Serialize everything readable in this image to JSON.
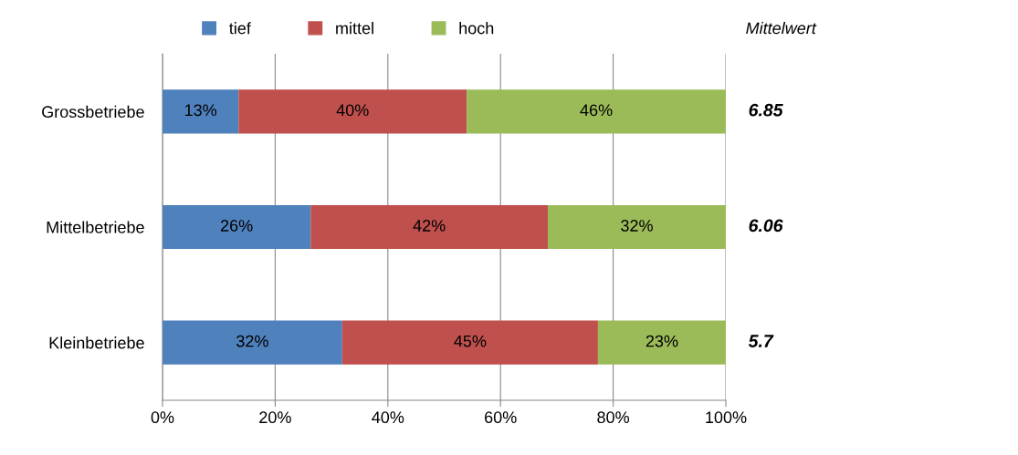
{
  "chart_data": {
    "type": "bar",
    "orientation": "horizontal",
    "stacked": true,
    "categories": [
      "Grossbetriebe",
      "Mittelbetriebe",
      "Kleinbetriebe"
    ],
    "series": [
      {
        "name": "tief",
        "color": "#4f81bd",
        "values": [
          13.5,
          26.3,
          31.9
        ],
        "value_labels": [
          "13%",
          "26%",
          "32%"
        ]
      },
      {
        "name": "mittel",
        "color": "#c0504d",
        "values": [
          40.5,
          42.1,
          45.4
        ],
        "value_labels": [
          "40%",
          "42%",
          "45%"
        ]
      },
      {
        "name": "hoch",
        "color": "#9bbb59",
        "values": [
          46.0,
          31.6,
          22.7
        ],
        "value_labels": [
          "46%",
          "32%",
          "23%"
        ]
      }
    ],
    "xlim": [
      0,
      100
    ],
    "xticks": [
      {
        "value": 0,
        "label": "0%"
      },
      {
        "value": 20,
        "label": "20%"
      },
      {
        "value": 40,
        "label": "40%"
      },
      {
        "value": 60,
        "label": "60%"
      },
      {
        "value": 80,
        "label": "80%"
      },
      {
        "value": 100,
        "label": "100%"
      }
    ],
    "grid": "x",
    "legend": "top",
    "annotations": [
      "Mittelwert",
      "6.85",
      "6.06",
      "5.7"
    ]
  }
}
